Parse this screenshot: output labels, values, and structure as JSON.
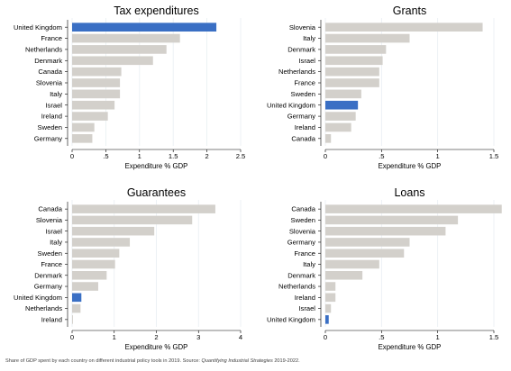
{
  "footer": {
    "text_before": "Share of GDP spent by each country on different industrial policy tools in 2019. Source: ",
    "text_italic": "Quantifying Industrial Strategies",
    "text_after": " 2019-2022."
  },
  "colors": {
    "bar": "#d3d0cb",
    "highlight": "#3a6fc4",
    "grid": "#e8eef2",
    "axis": "#000000"
  },
  "highlight_category": "United Kingdom",
  "chart_data": [
    {
      "type": "bar",
      "orientation": "horizontal",
      "title": "Tax expenditures",
      "xlabel": "Expenditure % GDP",
      "categories": [
        "United Kingdom",
        "France",
        "Netherlands",
        "Denmark",
        "Canada",
        "Slovenia",
        "Italy",
        "Israel",
        "Ireland",
        "Sweden",
        "Germany"
      ],
      "values": [
        2.14,
        1.6,
        1.4,
        1.2,
        0.73,
        0.71,
        0.71,
        0.63,
        0.53,
        0.33,
        0.3
      ],
      "xlim": [
        0,
        2.5
      ],
      "ticks": [
        0,
        0.5,
        1,
        1.5,
        2,
        2.5
      ],
      "tick_labels": [
        "0",
        ".5",
        "1",
        "1.5",
        "2",
        "2.5"
      ],
      "grid": true
    },
    {
      "type": "bar",
      "orientation": "horizontal",
      "title": "Grants",
      "xlabel": "Expenditure % GDP",
      "categories": [
        "Slovenia",
        "Italy",
        "Denmark",
        "Israel",
        "Netherlands",
        "France",
        "Sweden",
        "United Kingdom",
        "Germany",
        "Ireland",
        "Canada"
      ],
      "values": [
        1.4,
        0.75,
        0.54,
        0.51,
        0.48,
        0.48,
        0.32,
        0.29,
        0.27,
        0.23,
        0.05
      ],
      "xlim": [
        0,
        1.5
      ],
      "ticks": [
        0,
        0.5,
        1,
        1.5
      ],
      "tick_labels": [
        "0",
        ".5",
        "1",
        "1.5"
      ],
      "grid": true
    },
    {
      "type": "bar",
      "orientation": "horizontal",
      "title": "Guarantees",
      "xlabel": "Expenditure % GDP",
      "categories": [
        "Canada",
        "Slovenia",
        "Israel",
        "Italy",
        "Sweden",
        "France",
        "Denmark",
        "Germany",
        "United Kingdom",
        "Netherlands",
        "Ireland"
      ],
      "values": [
        3.4,
        2.85,
        1.95,
        1.37,
        1.12,
        1.02,
        0.82,
        0.62,
        0.22,
        0.2,
        0.02
      ],
      "xlim": [
        0,
        4
      ],
      "ticks": [
        0,
        1,
        2,
        3,
        4
      ],
      "tick_labels": [
        "0",
        "1",
        "2",
        "3",
        "4"
      ],
      "grid": true
    },
    {
      "type": "bar",
      "orientation": "horizontal",
      "title": "Loans",
      "xlabel": "Expenditure % GDP",
      "categories": [
        "Canada",
        "Sweden",
        "Slovenia",
        "Germany",
        "France",
        "Italy",
        "Denmark",
        "Netherlands",
        "Ireland",
        "Israel",
        "United Kingdom"
      ],
      "values": [
        1.57,
        1.18,
        1.07,
        0.75,
        0.7,
        0.48,
        0.33,
        0.09,
        0.09,
        0.05,
        0.03
      ],
      "xlim": [
        0,
        1.5
      ],
      "ticks": [
        0,
        0.5,
        1,
        1.5
      ],
      "tick_labels": [
        "0",
        ".5",
        "1",
        "1.5"
      ],
      "grid": true
    }
  ]
}
